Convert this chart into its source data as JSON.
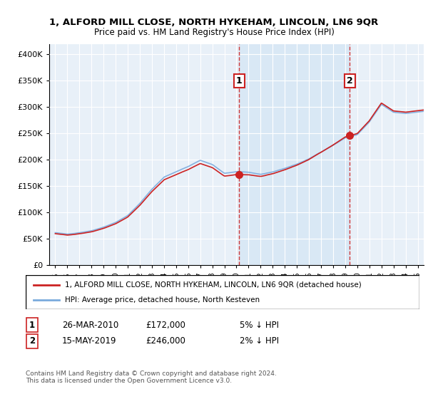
{
  "title": "1, ALFORD MILL CLOSE, NORTH HYKEHAM, LINCOLN, LN6 9QR",
  "subtitle": "Price paid vs. HM Land Registry's House Price Index (HPI)",
  "sale1_date": "26-MAR-2010",
  "sale1_price": 172000,
  "sale1_label": "1",
  "sale1_pct": "5% ↓ HPI",
  "sale2_date": "15-MAY-2019",
  "sale2_price": 246000,
  "sale2_label": "2",
  "sale2_pct": "2% ↓ HPI",
  "sale1_x": 2010.22,
  "sale2_x": 2019.37,
  "legend_line1": "1, ALFORD MILL CLOSE, NORTH HYKEHAM, LINCOLN, LN6 9QR (detached house)",
  "legend_line2": "HPI: Average price, detached house, North Kesteven",
  "footer": "Contains HM Land Registry data © Crown copyright and database right 2024.\nThis data is licensed under the Open Government Licence v3.0.",
  "hpi_color": "#7aaadd",
  "price_color": "#cc2222",
  "bg_color": "#e8f0f8",
  "shade_color": "#d0e4f4",
  "ylim": [
    0,
    420000
  ],
  "xlim_start": 1994.5,
  "xlim_end": 2025.5
}
